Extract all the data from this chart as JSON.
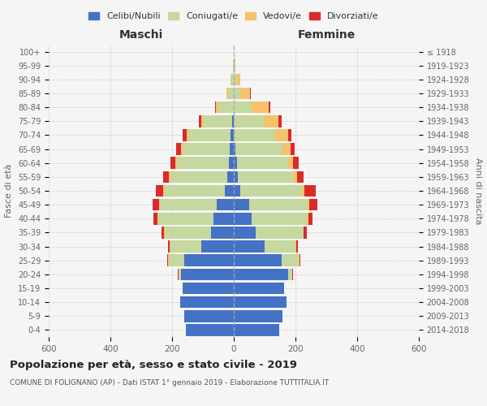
{
  "age_groups_bottom_to_top": [
    "0-4",
    "5-9",
    "10-14",
    "15-19",
    "20-24",
    "25-29",
    "30-34",
    "35-39",
    "40-44",
    "45-49",
    "50-54",
    "55-59",
    "60-64",
    "65-69",
    "70-74",
    "75-79",
    "80-84",
    "85-89",
    "90-94",
    "95-99",
    "100+"
  ],
  "birth_years_bottom_to_top": [
    "2014-2018",
    "2009-2013",
    "2004-2008",
    "1999-2003",
    "1994-1998",
    "1989-1993",
    "1984-1988",
    "1979-1983",
    "1974-1978",
    "1969-1973",
    "1964-1968",
    "1959-1963",
    "1954-1958",
    "1949-1953",
    "1944-1948",
    "1939-1943",
    "1934-1938",
    "1929-1933",
    "1924-1928",
    "1919-1923",
    "≤ 1918"
  ],
  "male": {
    "celibi": [
      155,
      160,
      175,
      165,
      170,
      160,
      105,
      75,
      65,
      55,
      30,
      20,
      15,
      12,
      10,
      5,
      0,
      0,
      0,
      0,
      0
    ],
    "coniugati": [
      0,
      0,
      0,
      2,
      10,
      50,
      100,
      150,
      180,
      185,
      195,
      185,
      170,
      155,
      135,
      95,
      50,
      18,
      8,
      2,
      0
    ],
    "vedovi": [
      0,
      0,
      0,
      0,
      0,
      2,
      2,
      2,
      3,
      3,
      3,
      5,
      5,
      5,
      8,
      5,
      8,
      5,
      2,
      0,
      0
    ],
    "divorziati": [
      0,
      0,
      0,
      0,
      2,
      5,
      5,
      8,
      12,
      20,
      25,
      20,
      15,
      15,
      12,
      8,
      2,
      0,
      0,
      0,
      0
    ]
  },
  "female": {
    "nubili": [
      148,
      158,
      170,
      162,
      175,
      155,
      100,
      70,
      58,
      50,
      22,
      12,
      10,
      5,
      0,
      0,
      0,
      0,
      0,
      0,
      0
    ],
    "coniugate": [
      0,
      0,
      0,
      2,
      15,
      55,
      100,
      155,
      180,
      190,
      200,
      180,
      165,
      152,
      135,
      98,
      58,
      22,
      10,
      2,
      0
    ],
    "vedove": [
      0,
      0,
      0,
      0,
      0,
      2,
      2,
      2,
      3,
      5,
      8,
      12,
      18,
      28,
      40,
      48,
      55,
      30,
      10,
      2,
      0
    ],
    "divorziate": [
      0,
      0,
      0,
      0,
      2,
      5,
      5,
      10,
      15,
      25,
      35,
      22,
      18,
      12,
      12,
      10,
      5,
      2,
      0,
      0,
      0
    ]
  },
  "colors": {
    "celibi": "#4472c4",
    "coniugati": "#c5d8a0",
    "vedovi": "#f5c26b",
    "divorziati": "#d92b2b"
  },
  "legend_labels": [
    "Celibi/Nubili",
    "Coniugati/e",
    "Vedovi/e",
    "Divorziati/e"
  ],
  "xlabel_left": "Maschi",
  "xlabel_right": "Femmine",
  "ylabel_left": "Fasce di età",
  "ylabel_right": "Anni di nascita",
  "title": "Popolazione per età, sesso e stato civile - 2019",
  "subtitle": "COMUNE DI FOLIGNANO (AP) - Dati ISTAT 1° gennaio 2019 - Elaborazione TUTTITALIA.IT",
  "xlim": 600,
  "background_color": "#f5f5f5",
  "grid_color": "#cccccc"
}
